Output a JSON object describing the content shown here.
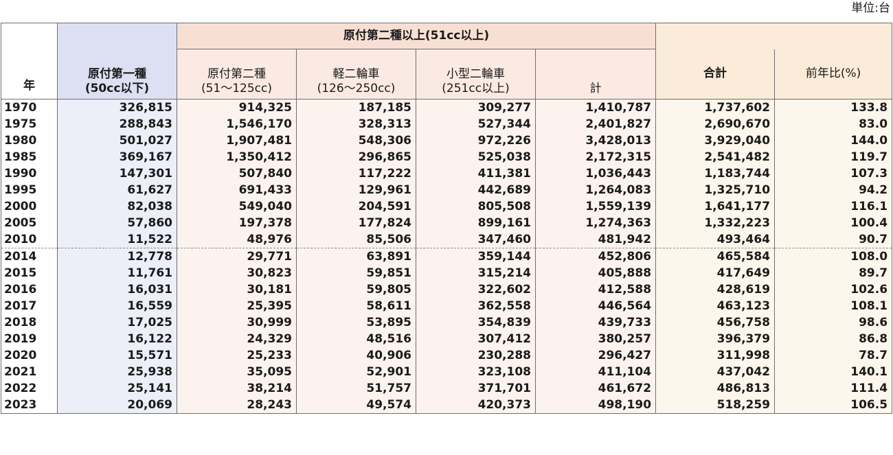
{
  "unit_label": "単位:台",
  "headers": {
    "year": "年",
    "moped1_line1": "原付第一種",
    "moped1_line2": "(50cc以下)",
    "group": "原付第二種以上(51cc以上)",
    "moped2_line1": "原付第二種",
    "moped2_line2": "(51〜125cc)",
    "light_line1": "軽二輪車",
    "light_line2": "(126〜250cc)",
    "small_line1": "小型二輪車",
    "small_line2": "(251cc以上)",
    "subtotal": "計",
    "total": "合計",
    "yoy": "前年比(%)"
  },
  "rows": [
    [
      "1970",
      "326,815",
      "914,325",
      "187,185",
      "309,277",
      "1,410,787",
      "1,737,602",
      "133.8"
    ],
    [
      "1975",
      "288,843",
      "1,546,170",
      "328,313",
      "527,344",
      "2,401,827",
      "2,690,670",
      "83.0"
    ],
    [
      "1980",
      "501,027",
      "1,907,481",
      "548,306",
      "972,226",
      "3,428,013",
      "3,929,040",
      "144.0"
    ],
    [
      "1985",
      "369,167",
      "1,350,412",
      "296,865",
      "525,038",
      "2,172,315",
      "2,541,482",
      "119.7"
    ],
    [
      "1990",
      "147,301",
      "507,840",
      "117,222",
      "411,381",
      "1,036,443",
      "1,183,744",
      "107.3"
    ],
    [
      "1995",
      "61,627",
      "691,433",
      "129,961",
      "442,689",
      "1,264,083",
      "1,325,710",
      "94.2"
    ],
    [
      "2000",
      "82,038",
      "549,040",
      "204,591",
      "805,508",
      "1,559,139",
      "1,641,177",
      "116.1"
    ],
    [
      "2005",
      "57,860",
      "197,378",
      "177,824",
      "899,161",
      "1,274,363",
      "1,332,223",
      "100.4"
    ],
    [
      "2010",
      "11,522",
      "48,976",
      "85,506",
      "347,460",
      "481,942",
      "493,464",
      "90.7"
    ],
    [
      "2014",
      "12,778",
      "29,771",
      "63,891",
      "359,144",
      "452,806",
      "465,584",
      "108.0"
    ],
    [
      "2015",
      "11,761",
      "30,823",
      "59,851",
      "315,214",
      "405,888",
      "417,649",
      "89.7"
    ],
    [
      "2016",
      "16,031",
      "30,181",
      "59,805",
      "322,602",
      "412,588",
      "428,619",
      "102.6"
    ],
    [
      "2017",
      "16,559",
      "25,395",
      "58,611",
      "362,558",
      "446,564",
      "463,123",
      "108.1"
    ],
    [
      "2018",
      "17,025",
      "30,999",
      "53,895",
      "354,839",
      "439,733",
      "456,758",
      "98.6"
    ],
    [
      "2019",
      "16,122",
      "24,329",
      "48,516",
      "307,412",
      "380,257",
      "396,379",
      "86.8"
    ],
    [
      "2020",
      "15,571",
      "25,233",
      "40,906",
      "230,288",
      "296,427",
      "311,998",
      "78.7"
    ],
    [
      "2021",
      "25,938",
      "35,095",
      "52,901",
      "323,108",
      "411,104",
      "437,042",
      "140.1"
    ],
    [
      "2022",
      "25,141",
      "38,214",
      "51,757",
      "371,701",
      "461,672",
      "486,813",
      "111.4"
    ],
    [
      "2023",
      "20,069",
      "28,243",
      "49,574",
      "420,373",
      "498,190",
      "518,259",
      "106.5"
    ]
  ],
  "separator_before_row": 9,
  "colors": {
    "moped1_header": "#dde0f2",
    "moped1_body": "#eceef8",
    "group_header": "#f8dfd4",
    "sub_header": "#fbeae2",
    "sub_body": "#fdf3ee",
    "total_header": "#faecd9",
    "total_body": "#fdf6ec"
  }
}
